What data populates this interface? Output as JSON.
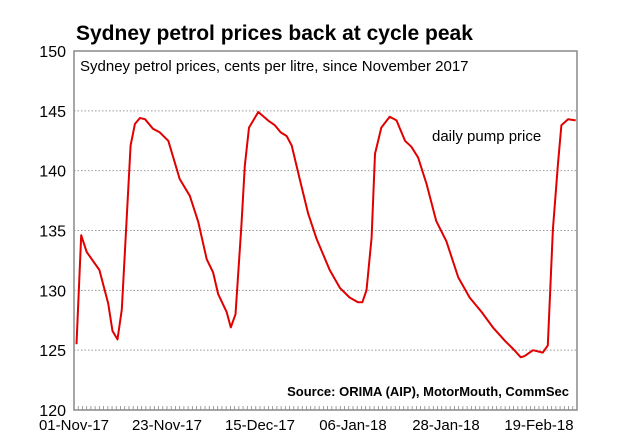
{
  "chart_data": {
    "type": "line",
    "title": "Sydney petrol prices back at cycle peak",
    "subtitle": "Sydney petrol prices, cents per litre, since November 2017",
    "source": "Source: ORIMA (AIP), MotorMouth, CommSec",
    "xlabel": "",
    "ylabel": "",
    "x_unit": "days since 01-Nov-17",
    "xlim": [
      0,
      119
    ],
    "ylim": [
      120,
      150
    ],
    "yticks": [
      120,
      125,
      130,
      135,
      140,
      145,
      150
    ],
    "xticks": [
      {
        "day": 0,
        "label": "01-Nov-17"
      },
      {
        "day": 22,
        "label": "23-Nov-17"
      },
      {
        "day": 44,
        "label": "15-Dec-17"
      },
      {
        "day": 66,
        "label": "06-Jan-18"
      },
      {
        "day": 88,
        "label": "28-Jan-18"
      },
      {
        "day": 110,
        "label": "19-Feb-18"
      }
    ],
    "grid": true,
    "series": [
      {
        "name": "daily pump price",
        "color": "#e00000",
        "points": [
          [
            0.6,
            125.5
          ],
          [
            1.7,
            134.6
          ],
          [
            3,
            133.2
          ],
          [
            6,
            131.7
          ],
          [
            8.1,
            128.9
          ],
          [
            9.1,
            126.6
          ],
          [
            10.3,
            125.9
          ],
          [
            11.3,
            128.4
          ],
          [
            13.4,
            142.1
          ],
          [
            14.4,
            143.9
          ],
          [
            15.6,
            144.4
          ],
          [
            16.8,
            144.3
          ],
          [
            18.7,
            143.5
          ],
          [
            20.3,
            143.2
          ],
          [
            22.3,
            142.5
          ],
          [
            25,
            139.3
          ],
          [
            27.4,
            137.9
          ],
          [
            29.4,
            135.7
          ],
          [
            31.4,
            132.6
          ],
          [
            32.9,
            131.5
          ],
          [
            34.1,
            129.7
          ],
          [
            36.1,
            128.2
          ],
          [
            37.1,
            126.9
          ],
          [
            38.2,
            128
          ],
          [
            39.6,
            135.4
          ],
          [
            40.4,
            140.4
          ],
          [
            41.4,
            143.6
          ],
          [
            43.6,
            144.9
          ],
          [
            45.9,
            144.2
          ],
          [
            47.5,
            143.8
          ],
          [
            48.9,
            143.2
          ],
          [
            50.3,
            142.9
          ],
          [
            51.5,
            142.1
          ],
          [
            53.4,
            139.3
          ],
          [
            55.4,
            136.4
          ],
          [
            57.4,
            134.3
          ],
          [
            60.5,
            131.7
          ],
          [
            62.9,
            130.2
          ],
          [
            65.2,
            129.4
          ],
          [
            67.2,
            129
          ],
          [
            68.2,
            129
          ],
          [
            69.2,
            130
          ],
          [
            70.4,
            134.4
          ],
          [
            71.2,
            141.4
          ],
          [
            72.7,
            143.6
          ],
          [
            74.7,
            144.5
          ],
          [
            76.3,
            144.2
          ],
          [
            78.3,
            142.5
          ],
          [
            79.8,
            142
          ],
          [
            81.4,
            141.1
          ],
          [
            83.4,
            138.9
          ],
          [
            85.7,
            135.8
          ],
          [
            88.1,
            134.1
          ],
          [
            90.9,
            131.1
          ],
          [
            93.6,
            129.4
          ],
          [
            96.4,
            128.2
          ],
          [
            99.1,
            126.9
          ],
          [
            101.9,
            125.8
          ],
          [
            103.9,
            125.1
          ],
          [
            105.7,
            124.4
          ],
          [
            106.6,
            124.5
          ],
          [
            108.6,
            125
          ],
          [
            110.9,
            124.8
          ],
          [
            112.1,
            125.4
          ],
          [
            113.3,
            135.1
          ],
          [
            114.5,
            140.6
          ],
          [
            115.3,
            143.8
          ],
          [
            116.9,
            144.3
          ],
          [
            118.7,
            144.2
          ]
        ]
      }
    ],
    "annotations": [
      "daily pump price"
    ]
  }
}
